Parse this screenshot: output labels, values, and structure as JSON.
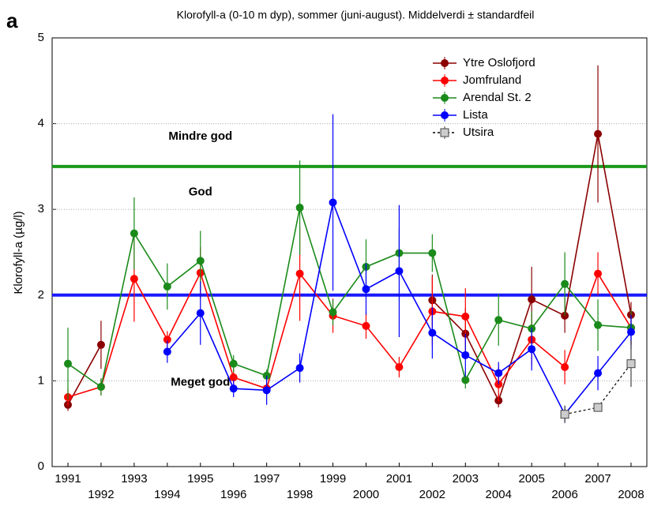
{
  "chart_data": {
    "type": "line",
    "panel_label": "a",
    "title": "Klorofyll-a (0-10 m dyp), sommer (juni-august). Middelverdi ± standardfeil",
    "y_label": "Klorofyll-a (µg/l)",
    "x": [
      1991,
      1992,
      1993,
      1994,
      1995,
      1996,
      1997,
      1998,
      1999,
      2000,
      2001,
      2002,
      2003,
      2004,
      2005,
      2006,
      2007,
      2008
    ],
    "xlim": [
      1991,
      2008
    ],
    "xticks": [
      1991,
      1992,
      1993,
      1994,
      1995,
      1996,
      1997,
      1998,
      1999,
      2000,
      2001,
      2002,
      2003,
      2004,
      2005,
      2006,
      2007,
      2008
    ],
    "ylim": [
      0,
      5
    ],
    "yticks": [
      0,
      1,
      2,
      3,
      4,
      5
    ],
    "grid": true,
    "legend": "upper right",
    "reference_lines": [
      {
        "value": 3.5,
        "color": "#1a9a1a"
      },
      {
        "value": 2,
        "color": "#1a1aff"
      }
    ],
    "annotations": [
      {
        "text": "Mindre god",
        "x": 1995,
        "y": 3.85
      },
      {
        "text": "God",
        "x": 1995,
        "y": 3.2
      },
      {
        "text": "Meget god",
        "x": 1995,
        "y": 0.98
      }
    ],
    "series": [
      {
        "name": "Ytre Oslofjord",
        "color": "#8b0000",
        "marker": "circle",
        "dashed": false,
        "values": [
          0.72,
          1.42,
          null,
          null,
          null,
          null,
          null,
          null,
          null,
          null,
          null,
          1.94,
          1.55,
          0.77,
          1.95,
          1.76,
          3.88,
          1.77
        ],
        "errors": [
          0.07,
          0.28,
          null,
          null,
          null,
          null,
          null,
          null,
          null,
          null,
          null,
          0.3,
          0.3,
          0.08,
          0.38,
          0.2,
          0.8,
          0.15
        ]
      },
      {
        "name": "Jomfruland",
        "color": "#ff0000",
        "marker": "circle",
        "dashed": false,
        "values": [
          0.81,
          0.93,
          2.19,
          1.48,
          2.26,
          1.04,
          0.91,
          2.25,
          1.76,
          1.64,
          1.16,
          1.81,
          1.75,
          0.96,
          1.48,
          1.16,
          2.25,
          1.62
        ],
        "errors": [
          0.1,
          0.1,
          0.5,
          0.1,
          0.3,
          0.1,
          0.07,
          0.55,
          0.2,
          0.15,
          0.12,
          0.4,
          0.33,
          0.2,
          0.3,
          0.2,
          0.25,
          0.2
        ]
      },
      {
        "name": "Arendal St. 2",
        "color": "#1a8a1a",
        "marker": "circle",
        "dashed": false,
        "values": [
          1.2,
          0.93,
          2.72,
          2.1,
          2.4,
          1.2,
          1.06,
          3.02,
          1.8,
          2.33,
          2.49,
          2.49,
          1.01,
          1.71,
          1.61,
          2.13,
          1.65,
          1.62
        ],
        "errors": [
          0.42,
          0.1,
          0.42,
          0.27,
          0.35,
          0.1,
          0.07,
          0.55,
          0.15,
          0.32,
          0.3,
          0.22,
          0.1,
          0.3,
          0.2,
          0.37,
          0.3,
          0.2
        ]
      },
      {
        "name": "Lista",
        "color": "#0000ff",
        "marker": "circle",
        "dashed": false,
        "values": [
          null,
          null,
          null,
          1.34,
          1.79,
          0.91,
          0.89,
          1.15,
          3.08,
          2.07,
          2.28,
          1.56,
          1.3,
          1.09,
          1.37,
          0.61,
          1.09,
          1.57
        ],
        "errors": [
          null,
          null,
          null,
          0.13,
          0.37,
          0.1,
          0.17,
          0.17,
          1.03,
          0.3,
          0.77,
          0.3,
          0.25,
          0.13,
          0.25,
          0.1,
          0.2,
          0.2
        ]
      },
      {
        "name": "Utsira",
        "color": "#000000",
        "marker": "square",
        "dashed": true,
        "values": [
          null,
          null,
          null,
          null,
          null,
          null,
          null,
          null,
          null,
          null,
          null,
          null,
          null,
          null,
          null,
          0.61,
          0.69,
          1.2
        ],
        "errors": [
          null,
          null,
          null,
          null,
          null,
          null,
          null,
          null,
          null,
          null,
          null,
          null,
          null,
          null,
          null,
          0.1,
          0.05,
          0.27
        ]
      }
    ]
  }
}
